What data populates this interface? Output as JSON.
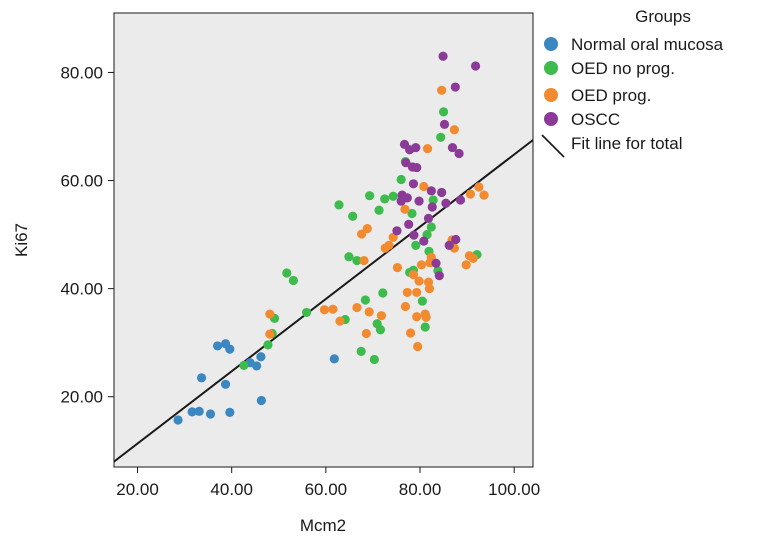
{
  "chart_data": {
    "type": "scatter",
    "title": "",
    "xlabel": "Mcm2",
    "ylabel": "Ki67",
    "xlim": [
      15,
      104
    ],
    "ylim": [
      7,
      91
    ],
    "xticks": [
      20,
      40,
      60,
      80,
      100
    ],
    "yticks": [
      20,
      40,
      60,
      80
    ],
    "xtick_labels": [
      "20.00",
      "40.00",
      "60.00",
      "80.00",
      "100.00"
    ],
    "ytick_labels": [
      "20.00",
      "40.00",
      "60.00",
      "80.00"
    ],
    "grid": false,
    "background": "#ebebeb",
    "legend": {
      "title": "Groups",
      "position": "right",
      "fit_label": "Fit line for total"
    },
    "series": [
      {
        "name": "Normal oral mucosa",
        "color": "#3a87c2",
        "points": [
          [
            28.6,
            15.7
          ],
          [
            31.6,
            17.2
          ],
          [
            33.1,
            17.3
          ],
          [
            35.5,
            16.8
          ],
          [
            39.6,
            17.1
          ],
          [
            46.3,
            19.3
          ],
          [
            61.8,
            27.0
          ],
          [
            33.6,
            23.5
          ],
          [
            38.7,
            22.3
          ],
          [
            37.0,
            29.4
          ],
          [
            38.7,
            29.8
          ],
          [
            39.6,
            28.8
          ],
          [
            43.9,
            26.3
          ],
          [
            45.3,
            25.7
          ],
          [
            46.2,
            27.4
          ]
        ]
      },
      {
        "name": "OED no prog.",
        "color": "#3dbb4d",
        "points": [
          [
            42.6,
            25.8
          ],
          [
            47.7,
            29.6
          ],
          [
            48.6,
            31.7
          ],
          [
            49.1,
            34.5
          ],
          [
            51.7,
            42.9
          ],
          [
            53.1,
            41.5
          ],
          [
            55.9,
            35.6
          ],
          [
            62.8,
            55.5
          ],
          [
            64.1,
            34.3
          ],
          [
            64.9,
            45.9
          ],
          [
            65.7,
            53.4
          ],
          [
            66.6,
            45.2
          ],
          [
            67.5,
            28.4
          ],
          [
            68.4,
            37.9
          ],
          [
            69.3,
            57.2
          ],
          [
            70.3,
            26.9
          ],
          [
            70.9,
            33.5
          ],
          [
            71.3,
            54.5
          ],
          [
            71.6,
            32.4
          ],
          [
            72.1,
            39.2
          ],
          [
            72.5,
            56.6
          ],
          [
            74.3,
            57.1
          ],
          [
            76.0,
            60.2
          ],
          [
            76.9,
            63.5
          ],
          [
            77.8,
            43.0
          ],
          [
            78.3,
            53.9
          ],
          [
            78.6,
            43.4
          ],
          [
            79.1,
            48.0
          ],
          [
            80.5,
            37.7
          ],
          [
            81.1,
            32.9
          ],
          [
            81.5,
            50.0
          ],
          [
            81.9,
            46.9
          ],
          [
            82.4,
            51.4
          ],
          [
            82.8,
            56.4
          ],
          [
            83.8,
            43.3
          ],
          [
            84.4,
            68.0
          ],
          [
            85.0,
            72.7
          ],
          [
            92.1,
            46.3
          ]
        ]
      },
      {
        "name": "OED prog.",
        "color": "#f28a30",
        "points": [
          [
            48.1,
            35.3
          ],
          [
            48.1,
            31.6
          ],
          [
            59.7,
            36.1
          ],
          [
            61.5,
            36.2
          ],
          [
            63.0,
            34.0
          ],
          [
            66.6,
            36.5
          ],
          [
            67.6,
            50.1
          ],
          [
            68.1,
            45.2
          ],
          [
            68.6,
            31.7
          ],
          [
            68.8,
            51.1
          ],
          [
            69.2,
            35.7
          ],
          [
            71.8,
            35.0
          ],
          [
            72.6,
            47.5
          ],
          [
            73.4,
            48.0
          ],
          [
            74.3,
            49.5
          ],
          [
            75.2,
            43.9
          ],
          [
            76.8,
            54.7
          ],
          [
            76.9,
            36.7
          ],
          [
            77.3,
            39.3
          ],
          [
            78.0,
            31.8
          ],
          [
            78.6,
            42.6
          ],
          [
            79.3,
            39.3
          ],
          [
            79.3,
            34.8
          ],
          [
            79.5,
            29.3
          ],
          [
            79.8,
            41.4
          ],
          [
            80.3,
            44.4
          ],
          [
            80.8,
            58.9
          ],
          [
            81.1,
            35.3
          ],
          [
            81.3,
            34.7
          ],
          [
            81.8,
            41.2
          ],
          [
            82.0,
            40.0
          ],
          [
            82.1,
            44.8
          ],
          [
            82.4,
            45.8
          ],
          [
            81.6,
            65.9
          ],
          [
            84.6,
            76.7
          ],
          [
            86.8,
            49.0
          ],
          [
            87.3,
            69.4
          ],
          [
            87.3,
            47.5
          ],
          [
            89.8,
            44.4
          ],
          [
            90.5,
            46.1
          ],
          [
            90.7,
            57.5
          ],
          [
            91.3,
            45.6
          ],
          [
            92.5,
            58.8
          ],
          [
            93.6,
            57.3
          ]
        ]
      },
      {
        "name": "OSCC",
        "color": "#8b3a97",
        "points": [
          [
            75.1,
            50.7
          ],
          [
            76.0,
            56.2
          ],
          [
            76.2,
            57.3
          ],
          [
            76.7,
            66.7
          ],
          [
            77.0,
            63.3
          ],
          [
            77.3,
            56.8
          ],
          [
            77.6,
            51.9
          ],
          [
            77.8,
            65.7
          ],
          [
            78.4,
            62.5
          ],
          [
            78.6,
            59.4
          ],
          [
            78.7,
            49.9
          ],
          [
            79.1,
            66.1
          ],
          [
            79.3,
            62.4
          ],
          [
            79.8,
            56.2
          ],
          [
            80.8,
            48.8
          ],
          [
            81.8,
            53.0
          ],
          [
            82.4,
            58.1
          ],
          [
            82.6,
            55.1
          ],
          [
            83.4,
            44.7
          ],
          [
            84.1,
            42.4
          ],
          [
            84.6,
            57.8
          ],
          [
            84.9,
            83.0
          ],
          [
            85.2,
            70.4
          ],
          [
            85.5,
            55.8
          ],
          [
            86.2,
            48.0
          ],
          [
            86.9,
            66.1
          ],
          [
            87.5,
            77.3
          ],
          [
            87.6,
            49.1
          ],
          [
            88.3,
            65.0
          ],
          [
            88.6,
            56.4
          ],
          [
            91.8,
            81.2
          ]
        ]
      }
    ],
    "fit_line": {
      "name": "Fit line for total",
      "color": "#1a1a1a",
      "x": [
        15,
        104
      ],
      "y": [
        8.0,
        67.5
      ]
    }
  }
}
